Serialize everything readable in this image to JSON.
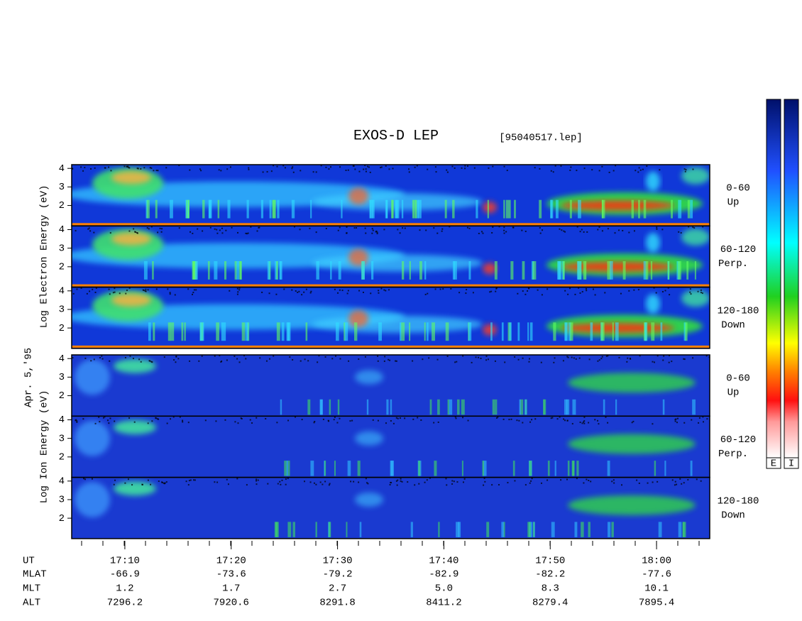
{
  "chart_data": {
    "type": "spectrogram",
    "title": "EXOS-D LEP",
    "subtitle": "[95040517.lep]",
    "date_label": "Apr. 5,'95",
    "xlim": [
      1025,
      1085
    ],
    "xticks": [
      {
        "value": 1030,
        "label": "17:10"
      },
      {
        "value": 1040,
        "label": "17:20"
      },
      {
        "value": 1050,
        "label": "17:30"
      },
      {
        "value": 1060,
        "label": "17:40"
      },
      {
        "value": 1070,
        "label": "17:50"
      },
      {
        "value": 1080,
        "label": "18:00"
      }
    ],
    "x_label": "UT",
    "ephemeris": [
      {
        "name": "MLAT",
        "values": [
          "-66.9",
          "-73.6",
          "-79.2",
          "-82.9",
          "-82.2",
          "-77.6"
        ]
      },
      {
        "name": "MLT",
        "values": [
          "1.2",
          "1.7",
          "2.7",
          "5.0",
          "8.3",
          "10.1"
        ]
      },
      {
        "name": "ALT",
        "values": [
          "7296.2",
          "7920.6",
          "8291.8",
          "8411.2",
          "8279.4",
          "7895.4"
        ]
      }
    ],
    "groups": [
      {
        "ylabel": "Log   Electron   Energy (eV)",
        "species": "E",
        "panels": [
          {
            "angle": "0-60",
            "direction": "Up",
            "ylim": [
              0.9,
              4.2
            ],
            "yticks": [
              2,
              3,
              4
            ]
          },
          {
            "angle": "60-120",
            "direction": "Perp.",
            "ylim": [
              0.9,
              4.2
            ],
            "yticks": [
              2,
              3,
              4
            ]
          },
          {
            "angle": "120-180",
            "direction": "Down",
            "ylim": [
              0.9,
              4.2
            ],
            "yticks": [
              2,
              3,
              4
            ]
          }
        ]
      },
      {
        "ylabel": "Log    Ion    Energy (eV)",
        "species": "I",
        "panels": [
          {
            "angle": "0-60",
            "direction": "Up",
            "ylim": [
              0.9,
              4.2
            ],
            "yticks": [
              2,
              3,
              4
            ]
          },
          {
            "angle": "60-120",
            "direction": "Perp.",
            "ylim": [
              0.9,
              4.2
            ],
            "yticks": [
              2,
              3,
              4
            ]
          },
          {
            "angle": "120-180",
            "direction": "Down",
            "ylim": [
              0.9,
              4.2
            ],
            "yticks": [
              2,
              3,
              4
            ]
          }
        ]
      }
    ],
    "colorbar_labels": [
      "E",
      "I"
    ]
  }
}
